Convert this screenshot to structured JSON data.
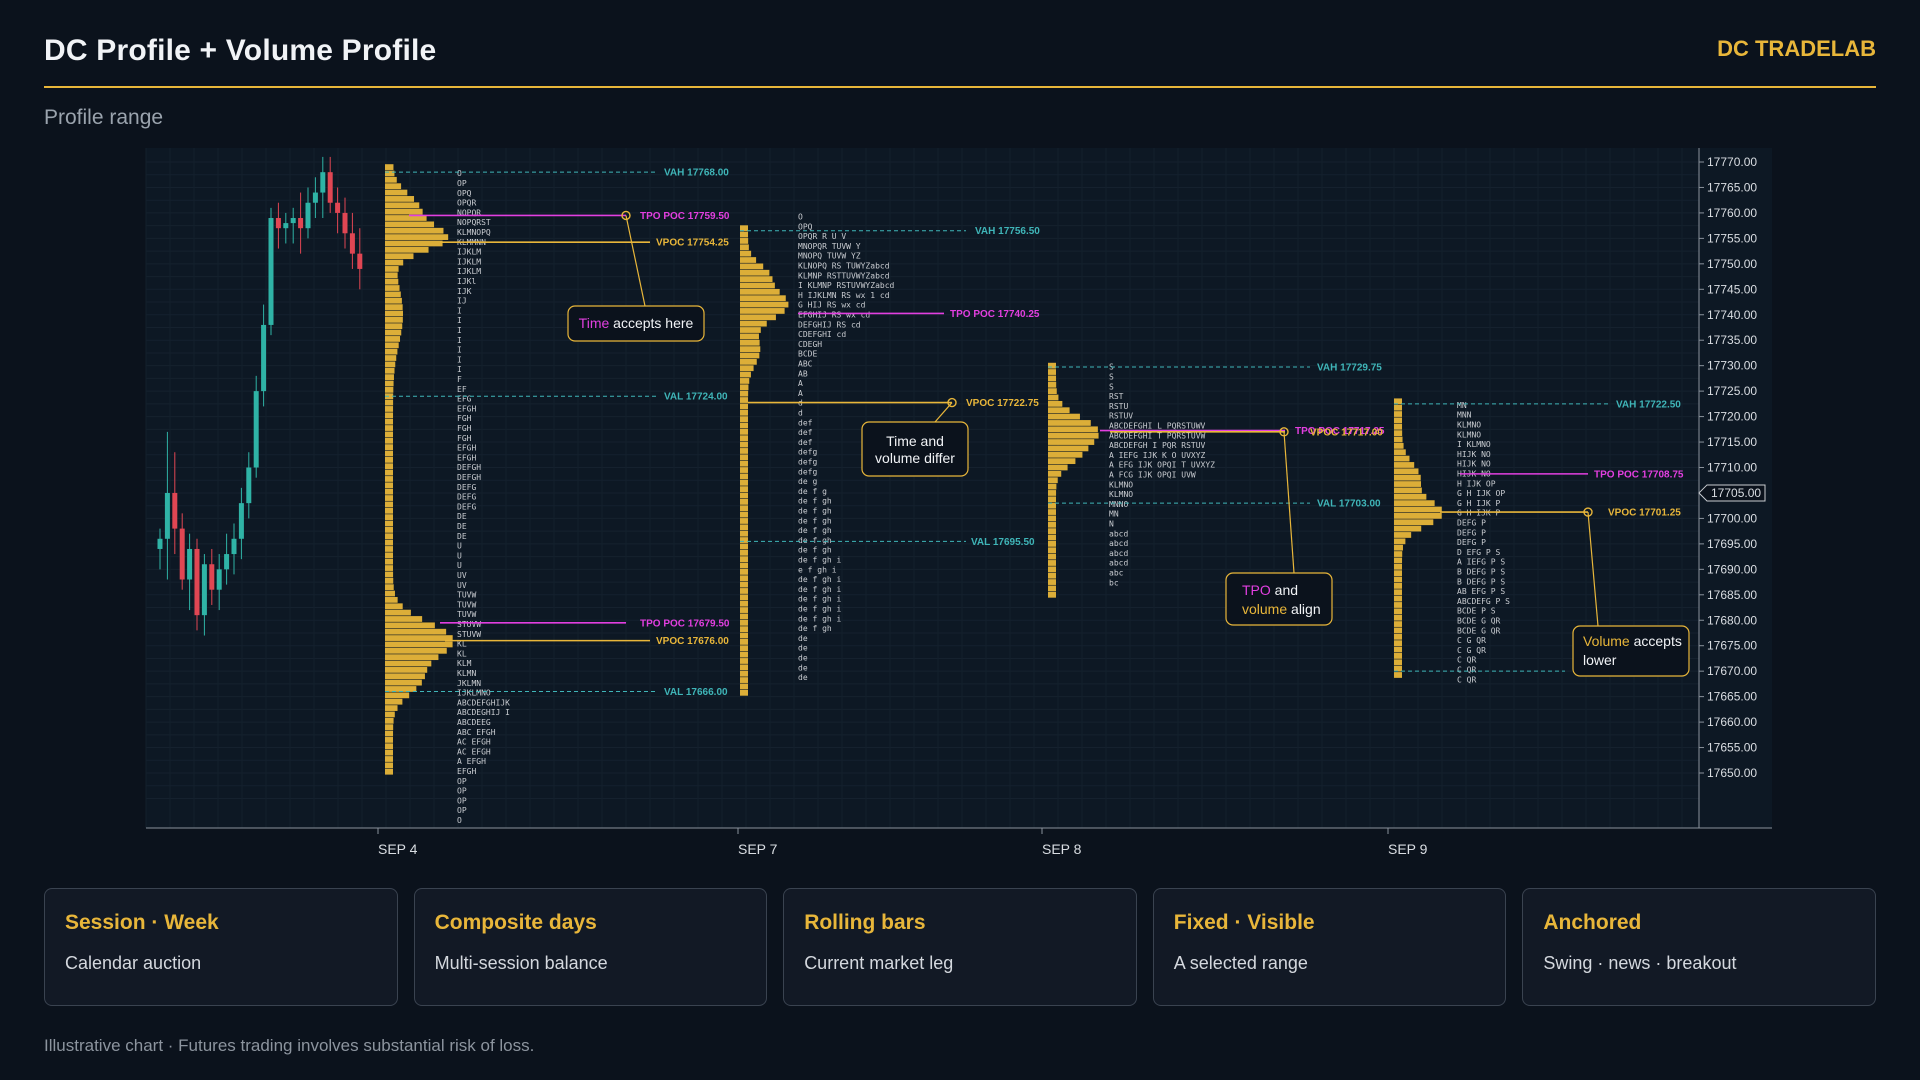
{
  "header": {
    "title": "DC Profile + Volume Profile",
    "brand": "DC TRADELAB"
  },
  "subtitle": "Profile range",
  "colors": {
    "accent": "#e8b63a",
    "tpo_poc": "#e23fe0",
    "value_area": "#3fb5b8",
    "bull": "#2fb3a6",
    "bear": "#e04653",
    "background": "#0b121c"
  },
  "cards": [
    {
      "title": "Session · Week",
      "desc": "Calendar auction"
    },
    {
      "title": "Composite days",
      "desc": "Multi-session balance"
    },
    {
      "title": "Rolling bars",
      "desc": "Current market leg"
    },
    {
      "title": "Fixed · Visible",
      "desc": "A selected range"
    },
    {
      "title": "Anchored",
      "desc": "Swing · news · breakout"
    }
  ],
  "footer": "Illustrative chart · Futures trading involves substantial risk of loss.",
  "chart_data": {
    "type": "market-profile",
    "y_axis": {
      "min": 17645,
      "max": 17772,
      "ticks": [
        17770,
        17765,
        17760,
        17755,
        17750,
        17745,
        17740,
        17735,
        17730,
        17725,
        17720,
        17715,
        17710,
        17705,
        17700,
        17695,
        17690,
        17685,
        17680,
        17675,
        17670,
        17665,
        17660,
        17655,
        17650
      ],
      "tick_format": "2dp",
      "current_price": 17705.0
    },
    "x_labels": [
      "SEP 4",
      "SEP 7",
      "SEP 8",
      "SEP 9"
    ],
    "candles": [
      [
        17694,
        17698,
        17690,
        17696
      ],
      [
        17696,
        17717,
        17688,
        17705
      ],
      [
        17705,
        17713,
        17693,
        17698
      ],
      [
        17698,
        17701,
        17686,
        17688
      ],
      [
        17688,
        17697,
        17682,
        17694
      ],
      [
        17694,
        17696,
        17678,
        17681
      ],
      [
        17681,
        17693,
        17677,
        17691
      ],
      [
        17691,
        17694,
        17683,
        17686
      ],
      [
        17686,
        17693,
        17682,
        17690
      ],
      [
        17690,
        17697,
        17687,
        17693
      ],
      [
        17693,
        17699,
        17689,
        17696
      ],
      [
        17696,
        17706,
        17692,
        17703
      ],
      [
        17703,
        17713,
        17700,
        17710
      ],
      [
        17710,
        17728,
        17708,
        17725
      ],
      [
        17725,
        17742,
        17722,
        17738
      ],
      [
        17738,
        17761,
        17736,
        17759
      ],
      [
        17759,
        17762,
        17753,
        17757
      ],
      [
        17757,
        17760,
        17754,
        17758
      ],
      [
        17758,
        17761,
        17754,
        17759
      ],
      [
        17759,
        17764,
        17752,
        17757
      ],
      [
        17757,
        17765,
        17755,
        17762
      ],
      [
        17762,
        17767,
        17759,
        17764
      ],
      [
        17764,
        17771,
        17759,
        17768
      ],
      [
        17768,
        17771,
        17760,
        17762
      ],
      [
        17762,
        17765,
        17756,
        17760
      ],
      [
        17760,
        17763,
        17753,
        17756
      ],
      [
        17756,
        17760,
        17749,
        17752
      ],
      [
        17752,
        17757,
        17745,
        17749
      ]
    ],
    "profiles": [
      {
        "session": "SEP 4",
        "vah": 17768.0,
        "val": 17666.0,
        "tpo_poc": 17759.5,
        "vpoc": 17754.25,
        "second_tpo_poc": 17679.5,
        "second_vpoc": 17676.0,
        "labels": {
          "vah": "VAH 17768.00",
          "val": "VAL 17666.00",
          "tpo_poc": "TPO POC 17759.50",
          "vpoc": "VPOC 17754.25",
          "tpo_poc2": "TPO POC 17679.50",
          "vpoc2": "VPOC 17676.00"
        },
        "tpo_rows": [
          "O",
          "OP",
          "OPQ",
          "OPQR",
          "NOPQR",
          "NOPQRST",
          "KLMNOPQ",
          "KLMMNN",
          "IJKLM",
          "IJKLM",
          "IJKLM",
          "IJKl",
          "IJK",
          "IJ",
          "I",
          "I",
          "I",
          "I",
          "I",
          "I",
          "I",
          "F",
          "EF",
          "EFG",
          "EFGH",
          "FGH",
          "FGH",
          "FGH",
          "EFGH",
          "EFGH",
          "DEFGH",
          "DEFGH",
          "DEFG",
          "DEFG",
          "DEFG",
          "DE",
          "DE",
          "DE",
          "U",
          "U",
          "U",
          "UV",
          "UV",
          "TUVW",
          "TUVW",
          "TUVW",
          "STUVW",
          "STUVW",
          "KL",
          "KL",
          "KLM",
          "KLMN",
          "JKLMN",
          "IJKLMNO",
          "ABCDEFGHIJK",
          "ABCDEGHIJ I",
          "ABCDEEG",
          "ABC EFGH",
          "AC  EFGH",
          "AC  EFGH",
          "A EFGH",
          "  EFGH",
          "OP",
          "OP",
          "OP",
          "OP",
          "O"
        ]
      },
      {
        "session": "SEP 7",
        "vah": 17756.5,
        "val": 17695.5,
        "tpo_poc": 17740.25,
        "vpoc": 17722.75,
        "labels": {
          "vah": "VAH 17756.50",
          "val": "VAL 17695.50",
          "tpo_poc": "TPO POC 17740.25",
          "vpoc": "VPOC 17722.75"
        },
        "tpo_rows": [
          "O",
          "OPQ",
          "OPQR  R U V",
          "MNOPQR   TUVW Y",
          "MNOPQ   TUVW YZ",
          "KLNOPQ   RS  TUWYZabcd",
          "KLMNP   RSTTUVWYZabcd",
          "I KLMNP  RSTUVWYZabcd",
          "H IJKLMN   RS  wx  1  cd",
          "G HIJ     RS  wx    cd",
          "EFGHIJ    RS  wx    cd",
          "DEFGHIJ   RS        cd",
          "CDEFGHI             cd",
          "CDEGH",
          "BCDE",
          "ABC",
          "AB",
          "A",
          "A",
          "d",
          "d",
          "def",
          "def",
          "def",
          "defg",
          "defg",
          "defg",
          "de g",
          "de f g",
          "de f gh",
          "de f gh",
          "de f gh",
          "de f gh",
          "de f gh",
          "de f gh",
          "de f gh   i",
          "e  f gh   i",
          "de f gh   i",
          "de f gh   i",
          "de f gh   i",
          "de f gh   i",
          "de f gh   i",
          "de f gh",
          "de",
          "de",
          "de",
          "de",
          "de"
        ]
      },
      {
        "session": "SEP 8",
        "vah": 17729.75,
        "val": 17703.0,
        "tpo_poc": 17717.25,
        "vpoc": 17717.0,
        "labels": {
          "vah": "VAH 17729.75",
          "val": "VAL 17703.00",
          "tpo_poc": "TPO POC 17717.25",
          "vpoc": "VPOC 17717.00"
        },
        "tpo_rows": [
          "S",
          "S",
          "S",
          "RST",
          "RSTU",
          "RSTUV",
          "ABCDEFGHI  L  PQRSTUWV",
          "ABCDEFGHI  T  PQRSTUVW",
          "ABCDEFGH I  PQR RSTUV",
          "A IEFG IJK K  O  UVXYZ",
          "A  EFG IJK   OPQI T UVXYZ",
          "A  FCG IJK   OPQI   UVW",
          "KLMNO",
          "KLMNO",
          "MNNO",
          "MN",
          "N",
          "abcd",
          "abcd",
          "abcd",
          "abcd",
          "abc",
          "bc"
        ]
      },
      {
        "session": "SEP 9",
        "vah": 17722.5,
        "val": 17670.0,
        "tpo_poc": 17708.75,
        "vpoc": 17701.25,
        "labels": {
          "vah": "VAH 17722.50",
          "tpo_poc": "TPO POC 17708.75",
          "vpoc": "VPOC 17701.25"
        },
        "tpo_rows": [
          "MN",
          "MNN",
          "KLMNO",
          "KLMNO",
          "I  KLMNO",
          "HIJK   NO",
          "HIJK   NO",
          "HIJK   NO",
          "H IJK    OP",
          "G H IJK   OP",
          "G H IJK   P",
          "G H IJK   P",
          "DEFG       P",
          "DEFG       P",
          "DEFG       P",
          "D EFG      P  S",
          "A IEFG     P  S",
          "B DEFG     P  S",
          "B DEFG     P  S",
          "AB EFG     P  S",
          "ABCDEFG    P  S",
          "BCDE       P  S",
          "BCDE       G  QR",
          "BCDE       G  QR",
          "C          G  QR",
          "C          G  QR",
          "C             QR",
          "C             QR",
          "C             QR"
        ]
      }
    ],
    "annotations": [
      {
        "text_plain": "accepts here",
        "text_highlight": "Time",
        "highlight_color": "#e23fe0"
      },
      {
        "text_line1": "Time and",
        "text_line2": "volume differ"
      },
      {
        "text_highlight1": "TPO",
        "text_plain1": " and",
        "text_highlight2": "volume",
        "text_plain2": " align"
      },
      {
        "text_highlight": "Volume",
        "text_plain1": " accepts",
        "text_plain2": "lower"
      }
    ],
    "price_tag": "17705.00"
  }
}
